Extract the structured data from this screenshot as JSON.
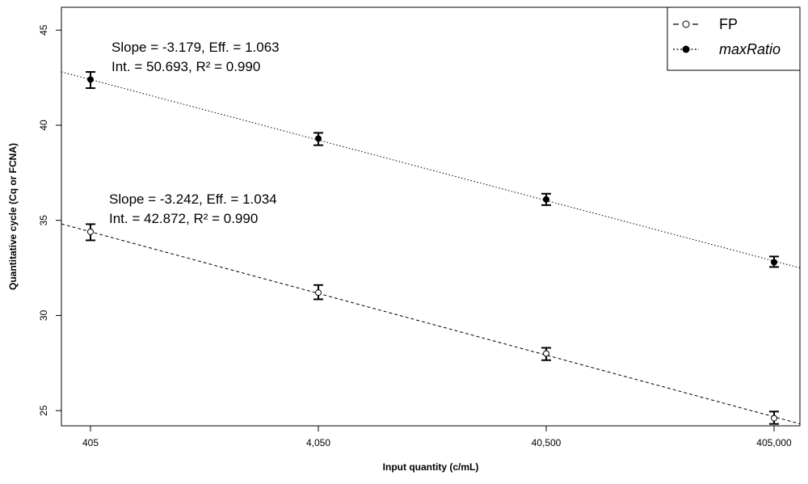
{
  "chart_data": {
    "type": "scatter",
    "x_scale": "log",
    "x": [
      405,
      4050,
      40500,
      405000
    ],
    "x_tick_labels": [
      "405",
      "4,050",
      "40,500",
      "405,000"
    ],
    "xlabel": "Input quantity (c/mL)",
    "ylabel": "Quantitative cycle (Cq or FCNA)",
    "ylim": [
      24.2,
      46.2
    ],
    "y_ticks": [
      25,
      30,
      35,
      40,
      45
    ],
    "grid": false,
    "legend_position": "top-right",
    "series": [
      {
        "name": "FP",
        "marker": "open-circle",
        "line_style": "dashed",
        "values": [
          34.4,
          31.2,
          28.0,
          24.6
        ],
        "err_low": [
          33.95,
          30.85,
          27.65,
          24.3
        ],
        "err_high": [
          34.8,
          31.6,
          28.3,
          24.95
        ],
        "fit": {
          "slope_per_log10": -3.242,
          "intercept": 42.872
        },
        "annotation": [
          "Slope = -3.242, Eff. = 1.034",
          "Int. = 42.872, R² = 0.990"
        ]
      },
      {
        "name": "maxRatio",
        "marker": "filled-circle",
        "line_style": "dotted",
        "values": [
          42.4,
          39.3,
          36.1,
          32.8
        ],
        "err_low": [
          41.95,
          38.95,
          35.8,
          32.55
        ],
        "err_high": [
          42.8,
          39.6,
          36.4,
          33.1
        ],
        "fit": {
          "slope_per_log10": -3.179,
          "intercept": 50.693
        },
        "annotation": [
          "Slope = -3.179, Eff. = 1.063",
          "Int. = 50.693, R² = 0.990"
        ]
      }
    ]
  }
}
